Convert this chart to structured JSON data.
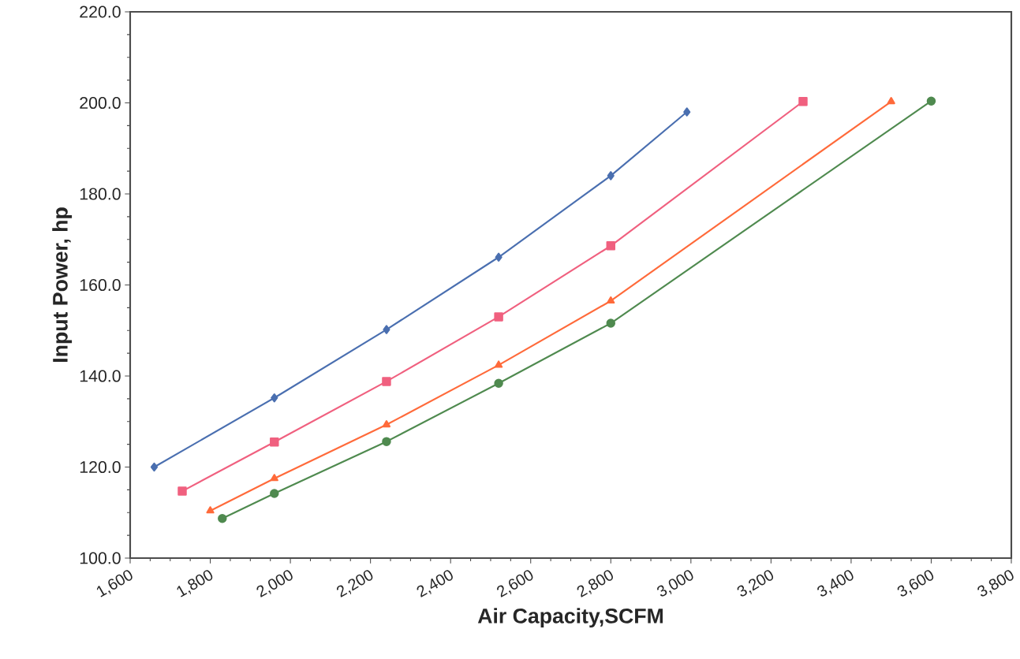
{
  "chart_data": {
    "type": "line",
    "xlabel": "Air Capacity,SCFM",
    "ylabel": "Input Power, hp",
    "xlim": [
      1600,
      3800
    ],
    "ylim": [
      100,
      220
    ],
    "xticks": [
      {
        "value": 1600,
        "label": "1,600"
      },
      {
        "value": 1800,
        "label": "1,800"
      },
      {
        "value": 2000,
        "label": "2,000"
      },
      {
        "value": 2200,
        "label": "2,200"
      },
      {
        "value": 2400,
        "label": "2,400"
      },
      {
        "value": 2600,
        "label": "2,600"
      },
      {
        "value": 2800,
        "label": "2,800"
      },
      {
        "value": 3000,
        "label": "3,000"
      },
      {
        "value": 3200,
        "label": "3,200"
      },
      {
        "value": 3400,
        "label": "3,400"
      },
      {
        "value": 3600,
        "label": "3,600"
      },
      {
        "value": 3800,
        "label": "3,800"
      }
    ],
    "yticks": [
      {
        "value": 100,
        "label": "100.0"
      },
      {
        "value": 120,
        "label": "120.0"
      },
      {
        "value": 140,
        "label": "140.0"
      },
      {
        "value": 160,
        "label": "160.0"
      },
      {
        "value": 180,
        "label": "180.0"
      },
      {
        "value": 200,
        "label": "200.0"
      },
      {
        "value": 220,
        "label": "220.0"
      }
    ],
    "grid": false,
    "legend": false,
    "line_style": "solid",
    "series": [
      {
        "color": "#4a6fb0",
        "marker": "diamond",
        "x": [
          1660,
          1960,
          2240,
          2520,
          2800,
          2990
        ],
        "values": [
          120,
          135.2,
          150.2,
          166.1,
          184.0,
          198.0
        ]
      },
      {
        "color": "#f0607f",
        "marker": "square",
        "x": [
          1730,
          1960,
          2240,
          2520,
          2800,
          3280
        ],
        "values": [
          114.7,
          125.5,
          138.8,
          153.0,
          168.6,
          200.3
        ]
      },
      {
        "color": "#ff6a3a",
        "marker": "triangle",
        "x": [
          1800,
          1960,
          2240,
          2520,
          2800,
          3500
        ],
        "values": [
          110.4,
          117.5,
          129.3,
          142.4,
          156.5,
          200.3
        ]
      },
      {
        "color": "#4f8a4f",
        "marker": "circle",
        "x": [
          1830,
          1960,
          2240,
          2520,
          2800,
          3600
        ],
        "values": [
          108.7,
          114.2,
          125.6,
          138.4,
          151.6,
          200.4
        ]
      }
    ]
  }
}
